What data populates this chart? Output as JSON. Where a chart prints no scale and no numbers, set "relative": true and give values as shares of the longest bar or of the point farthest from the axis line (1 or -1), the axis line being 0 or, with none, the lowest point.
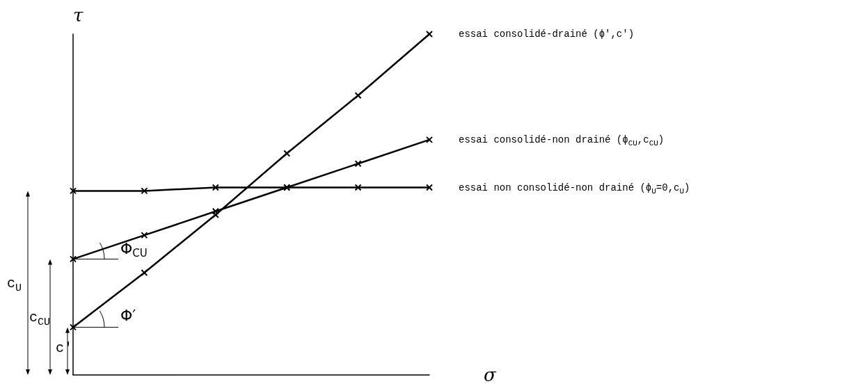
{
  "chart_data": {
    "type": "line",
    "relative": true,
    "xlabel": "σ",
    "ylabel": "τ",
    "categories": [
      null,
      null,
      null,
      null,
      null,
      null
    ],
    "series": [
      {
        "name": "essai consolidé-drainé (ϕ',c')",
        "color": "#000000",
        "values": [
          0.14,
          0.3,
          0.47,
          0.65,
          0.82,
          1
        ]
      },
      {
        "name": "essai consolidé-non drainé (ϕ$_{CU}$,c$_{CU}$)",
        "color": "#000000",
        "values": [
          0.34,
          0.41,
          0.48,
          0.55,
          0.62,
          0.69
        ]
      },
      {
        "name": "essai non consolidé-non drainé (ϕ$_{U}$=0,c$_{U}$)",
        "color": "#000000",
        "values": [
          0.54,
          0.54,
          0.55,
          0.55,
          0.55,
          0.55
        ]
      }
    ],
    "annotations": [
      "Φ$_{CU}$",
      "Φ′",
      "c$_{U}$",
      "c$_{CU}$",
      "c'"
    ],
    "marker": "cross",
    "grid": false,
    "legend": false,
    "line_style": "solid"
  }
}
